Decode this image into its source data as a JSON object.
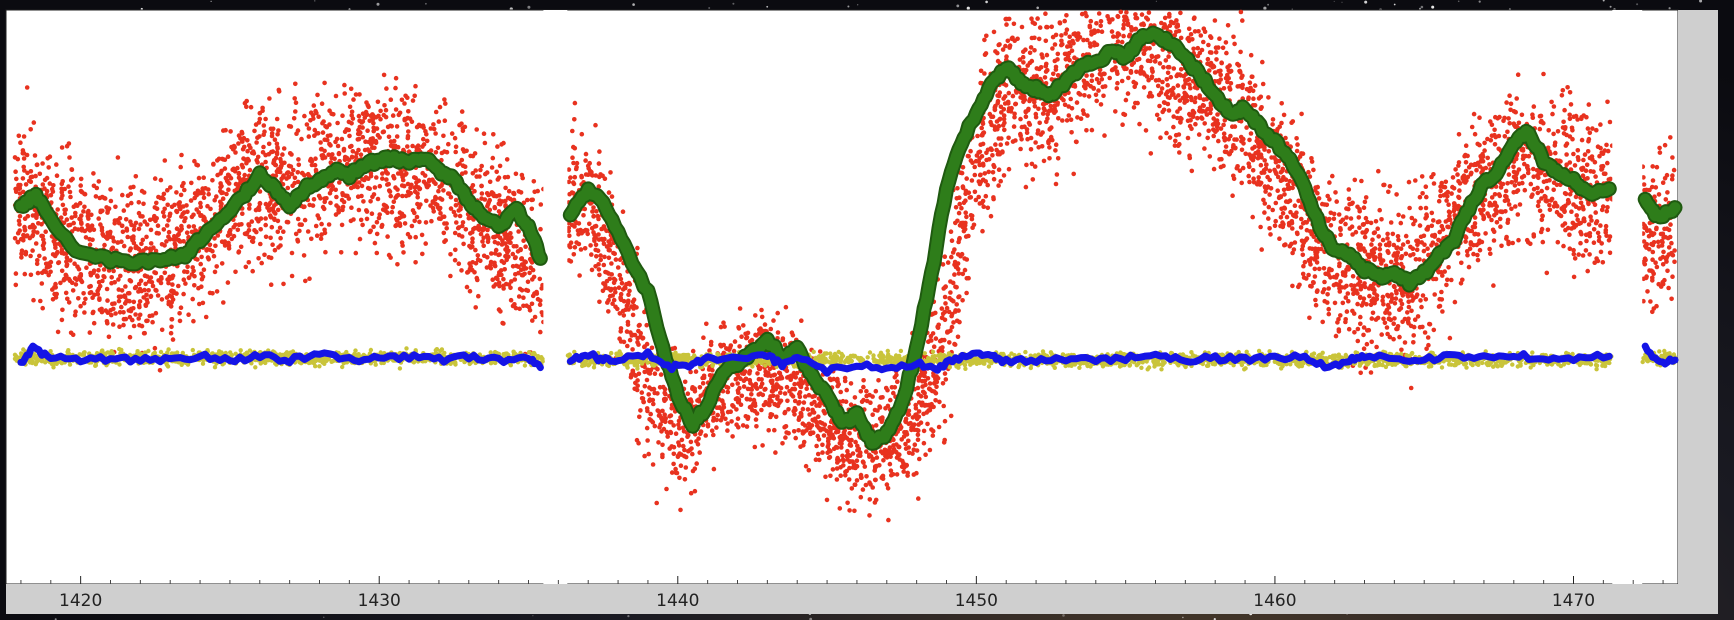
{
  "chart_data": {
    "type": "scatter",
    "title": "",
    "xlabel": "",
    "ylabel": "",
    "xlim": [
      1417.5,
      1473.5
    ],
    "ylim": [
      -2.05,
      1.0
    ],
    "xticks": [
      1420,
      1430,
      1440,
      1450,
      1460,
      1470
    ],
    "xtick_labels": [
      "1420",
      "1430",
      "1440",
      "1450",
      "1460",
      "1470"
    ],
    "grid": false,
    "legend": "none",
    "gaps": [
      [
        1435.5,
        1436.3
      ],
      [
        1471.3,
        1472.3
      ]
    ],
    "colors": {
      "raw": "#e8321f",
      "smoothed": "#2e7d1a",
      "smoothed_edge": "#1f5a10",
      "residual": "#c9c43a",
      "residual_smoothed": "#1414e6",
      "panel_background": "#ffffff",
      "axis_strip": "#cfcfcf"
    },
    "series": [
      {
        "kind": "scatter",
        "role": "raw",
        "x": [
          1418,
          1419,
          1420,
          1421,
          1422,
          1423,
          1424,
          1425,
          1426,
          1427,
          1428,
          1429,
          1430,
          1431,
          1432,
          1433,
          1434,
          1435,
          1435.5,
          1436.3,
          1437,
          1438,
          1439,
          1440,
          1441,
          1442,
          1443,
          1444,
          1445,
          1446,
          1447,
          1448,
          1449,
          1450,
          1451,
          1452,
          1453,
          1454,
          1455,
          1456,
          1457,
          1458,
          1459,
          1460,
          1461,
          1462,
          1463,
          1464,
          1465,
          1466,
          1467,
          1468,
          1469,
          1470,
          1471.3,
          1472.3,
          1473
        ],
        "center": [
          0.0,
          -0.2,
          -0.3,
          -0.33,
          -0.32,
          -0.28,
          -0.18,
          0.0,
          0.1,
          0.05,
          0.12,
          0.18,
          0.2,
          0.17,
          0.1,
          -0.05,
          -0.15,
          -0.3,
          -0.5,
          0.0,
          -0.05,
          -0.4,
          -0.95,
          -1.25,
          -1.05,
          -0.95,
          -0.9,
          -1.0,
          -1.2,
          -1.3,
          -1.3,
          -1.15,
          -0.7,
          0.2,
          0.6,
          0.52,
          0.65,
          0.75,
          0.82,
          0.78,
          0.6,
          0.55,
          0.4,
          0.15,
          -0.15,
          -0.32,
          -0.42,
          -0.42,
          -0.35,
          -0.1,
          0.05,
          0.2,
          0.1,
          0.08,
          0.02,
          -0.2,
          -0.18
        ],
        "spread": [
          0.55,
          0.55,
          0.55,
          0.55,
          0.55,
          0.55,
          0.55,
          0.55,
          0.55,
          0.55,
          0.55,
          0.55,
          0.55,
          0.55,
          0.55,
          0.55,
          0.55,
          0.55,
          0.55,
          0.55,
          0.55,
          0.55,
          0.55,
          0.45,
          0.4,
          0.4,
          0.4,
          0.4,
          0.4,
          0.4,
          0.4,
          0.45,
          0.55,
          0.55,
          0.55,
          0.55,
          0.55,
          0.55,
          0.55,
          0.55,
          0.55,
          0.55,
          0.55,
          0.55,
          0.55,
          0.55,
          0.55,
          0.55,
          0.55,
          0.55,
          0.55,
          0.55,
          0.55,
          0.55,
          0.55,
          0.55,
          0.55
        ]
      },
      {
        "kind": "line",
        "role": "smoothed",
        "x": [
          1418,
          1418.5,
          1419,
          1420,
          1421,
          1422,
          1422.8,
          1423.5,
          1424,
          1424.8,
          1425.5,
          1426,
          1426.5,
          1427,
          1427.5,
          1428,
          1428.5,
          1429,
          1429.5,
          1430,
          1430.5,
          1431,
          1431.5,
          1432,
          1432.5,
          1433,
          1433.5,
          1434,
          1434.6,
          1435,
          1435.4,
          1436.4,
          1437,
          1437.6,
          1438.2,
          1439,
          1439.6,
          1440,
          1440.5,
          1441,
          1441.5,
          1442,
          1442.5,
          1443,
          1443.5,
          1444,
          1444.5,
          1445,
          1445.5,
          1446,
          1446.5,
          1447,
          1447.5,
          1448,
          1448.5,
          1449,
          1449.5,
          1450,
          1450.5,
          1451,
          1451.5,
          1452,
          1452.5,
          1453,
          1453.5,
          1454,
          1454.5,
          1455,
          1455.5,
          1456,
          1456.5,
          1457,
          1457.5,
          1458,
          1458.5,
          1459,
          1459.5,
          1460,
          1460.5,
          1461,
          1461.5,
          1462,
          1462.5,
          1463,
          1463.5,
          1464,
          1464.5,
          1465,
          1465.5,
          1466,
          1466.5,
          1467,
          1467.5,
          1468,
          1468.5,
          1469,
          1469.5,
          1470,
          1470.5,
          1471.2,
          1472.4,
          1472.8,
          1473.4
        ],
        "y": [
          -0.05,
          0.02,
          -0.12,
          -0.3,
          -0.33,
          -0.34,
          -0.32,
          -0.3,
          -0.22,
          -0.1,
          0.02,
          0.12,
          0.05,
          -0.05,
          0.05,
          0.1,
          0.15,
          0.12,
          0.18,
          0.2,
          0.22,
          0.18,
          0.22,
          0.14,
          0.1,
          -0.02,
          -0.1,
          -0.15,
          -0.06,
          -0.15,
          -0.32,
          -0.08,
          0.05,
          -0.05,
          -0.25,
          -0.5,
          -0.85,
          -1.05,
          -1.2,
          -1.1,
          -0.92,
          -0.88,
          -0.82,
          -0.75,
          -0.85,
          -0.8,
          -0.95,
          -1.05,
          -1.2,
          -1.15,
          -1.3,
          -1.25,
          -1.1,
          -0.8,
          -0.4,
          0.05,
          0.3,
          0.45,
          0.6,
          0.7,
          0.62,
          0.58,
          0.55,
          0.62,
          0.7,
          0.72,
          0.78,
          0.75,
          0.85,
          0.88,
          0.82,
          0.75,
          0.65,
          0.55,
          0.45,
          0.48,
          0.38,
          0.3,
          0.2,
          0.05,
          -0.15,
          -0.28,
          -0.3,
          -0.38,
          -0.42,
          -0.4,
          -0.45,
          -0.4,
          -0.3,
          -0.22,
          -0.05,
          0.08,
          0.15,
          0.3,
          0.35,
          0.2,
          0.12,
          0.1,
          0.02,
          0.05,
          0.0,
          -0.1,
          -0.05
        ]
      },
      {
        "kind": "scatter",
        "role": "residual",
        "x": [
          1418,
          1435.5,
          1436.3,
          1471.3,
          1472.3,
          1473
        ],
        "center": [
          -0.85,
          -0.85,
          -0.86,
          -0.86,
          -0.85,
          -0.85
        ],
        "spread": [
          0.06,
          0.06,
          0.06,
          0.06,
          0.06,
          0.06
        ]
      },
      {
        "kind": "line",
        "role": "residual_smoothed",
        "x": [
          1418,
          1418.4,
          1419,
          1420,
          1421,
          1422,
          1423,
          1424,
          1425,
          1426,
          1427,
          1428,
          1429,
          1430,
          1431,
          1432,
          1433,
          1434,
          1435,
          1435.4,
          1436.4,
          1437,
          1437.5,
          1438,
          1439,
          1439.8,
          1440.5,
          1441,
          1442,
          1443,
          1443.5,
          1444,
          1445,
          1446,
          1447,
          1448,
          1448.7,
          1449.3,
          1450,
          1450.6,
          1451,
          1452,
          1453,
          1454,
          1455,
          1456,
          1457,
          1458,
          1459,
          1460,
          1461,
          1461.8,
          1462.5,
          1463,
          1464,
          1465,
          1466,
          1467,
          1468,
          1469,
          1470,
          1471.2,
          1472.4,
          1472.9,
          1473.4
        ],
        "y": [
          -0.88,
          -0.8,
          -0.85,
          -0.86,
          -0.85,
          -0.86,
          -0.86,
          -0.84,
          -0.86,
          -0.84,
          -0.86,
          -0.83,
          -0.86,
          -0.85,
          -0.84,
          -0.86,
          -0.84,
          -0.86,
          -0.85,
          -0.9,
          -0.86,
          -0.83,
          -0.86,
          -0.86,
          -0.83,
          -0.9,
          -0.88,
          -0.85,
          -0.86,
          -0.83,
          -0.89,
          -0.84,
          -0.92,
          -0.88,
          -0.9,
          -0.88,
          -0.9,
          -0.86,
          -0.82,
          -0.85,
          -0.87,
          -0.86,
          -0.85,
          -0.86,
          -0.85,
          -0.84,
          -0.86,
          -0.85,
          -0.86,
          -0.84,
          -0.85,
          -0.9,
          -0.86,
          -0.84,
          -0.85,
          -0.86,
          -0.84,
          -0.85,
          -0.83,
          -0.86,
          -0.85,
          -0.84,
          -0.8,
          -0.88,
          -0.86
        ]
      }
    ]
  }
}
